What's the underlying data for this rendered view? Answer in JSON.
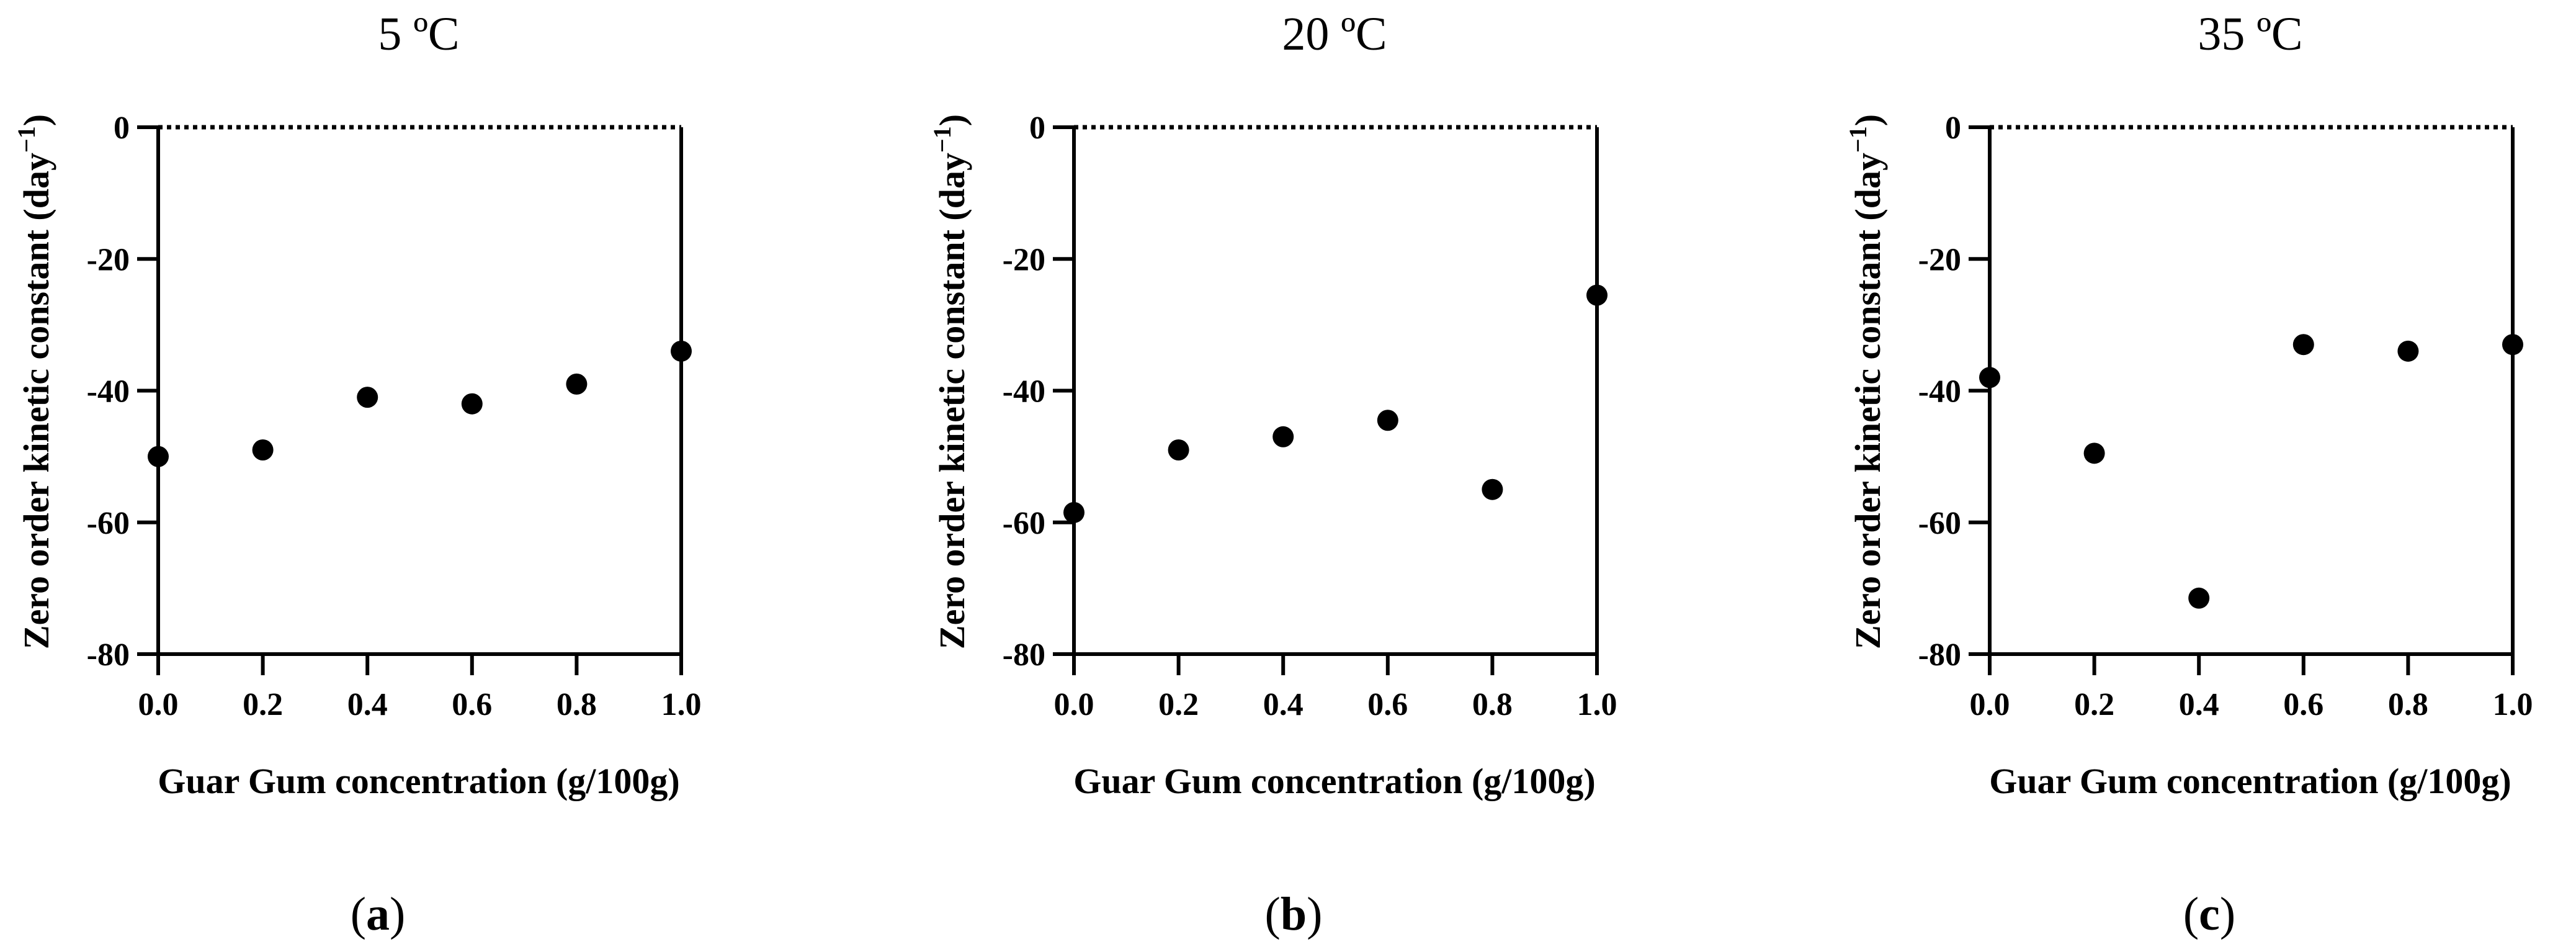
{
  "figure": {
    "panels": [
      {
        "title": "5 ºC",
        "caption_letter": "a"
      },
      {
        "title": "20 ºC",
        "caption_letter": "b"
      },
      {
        "title": "35 ºC",
        "caption_letter": "c"
      }
    ]
  },
  "chart_data": [
    {
      "type": "scatter",
      "title": "5 ºC",
      "xlabel": "Guar Gum concentration (g/100g)",
      "ylabel": "Zero order kinetic constant (day",
      "ylabel_superscript": "−1",
      "ylabel_suffix": ")",
      "x": [
        0.0,
        0.2,
        0.4,
        0.6,
        0.8,
        1.0
      ],
      "y": [
        -50,
        -49,
        -41,
        -42,
        -39,
        -34
      ],
      "xlim": [
        0.0,
        1.0
      ],
      "ylim": [
        -80,
        0
      ],
      "xticks": [
        "0.0",
        "0.2",
        "0.4",
        "0.6",
        "0.8",
        "1.0"
      ],
      "yticks": [
        "0",
        "-20",
        "-40",
        "-60",
        "-80"
      ],
      "reference_line_y": 0,
      "reference_line_style": "dotted",
      "grid": false,
      "marker_color": "#000000"
    },
    {
      "type": "scatter",
      "title": "20 ºC",
      "xlabel": "Guar Gum concentration (g/100g)",
      "ylabel": "Zero order kinetic constant (day",
      "ylabel_superscript": "−1",
      "ylabel_suffix": ")",
      "x": [
        0.0,
        0.2,
        0.4,
        0.6,
        0.8,
        1.0
      ],
      "y": [
        -58.5,
        -49,
        -47,
        -44.5,
        -55,
        -25.5
      ],
      "xlim": [
        0.0,
        1.0
      ],
      "ylim": [
        -80,
        0
      ],
      "xticks": [
        "0.0",
        "0.2",
        "0.4",
        "0.6",
        "0.8",
        "1.0"
      ],
      "yticks": [
        "0",
        "-20",
        "-40",
        "-60",
        "-80"
      ],
      "reference_line_y": 0,
      "reference_line_style": "dotted",
      "grid": false,
      "marker_color": "#000000"
    },
    {
      "type": "scatter",
      "title": "35 ºC",
      "xlabel": "Guar Gum concentration (g/100g)",
      "ylabel": "Zero order kinetic constant (day",
      "ylabel_superscript": "−1",
      "ylabel_suffix": ")",
      "x": [
        0.0,
        0.2,
        0.4,
        0.6,
        0.8,
        1.0
      ],
      "y": [
        -38,
        -49.5,
        -71.5,
        -33,
        -34,
        -33
      ],
      "xlim": [
        0.0,
        1.0
      ],
      "ylim": [
        -80,
        0
      ],
      "xticks": [
        "0.0",
        "0.2",
        "0.4",
        "0.6",
        "0.8",
        "1.0"
      ],
      "yticks": [
        "0",
        "-20",
        "-40",
        "-60",
        "-80"
      ],
      "reference_line_y": 0,
      "reference_line_style": "dotted",
      "grid": false,
      "marker_color": "#000000"
    }
  ]
}
